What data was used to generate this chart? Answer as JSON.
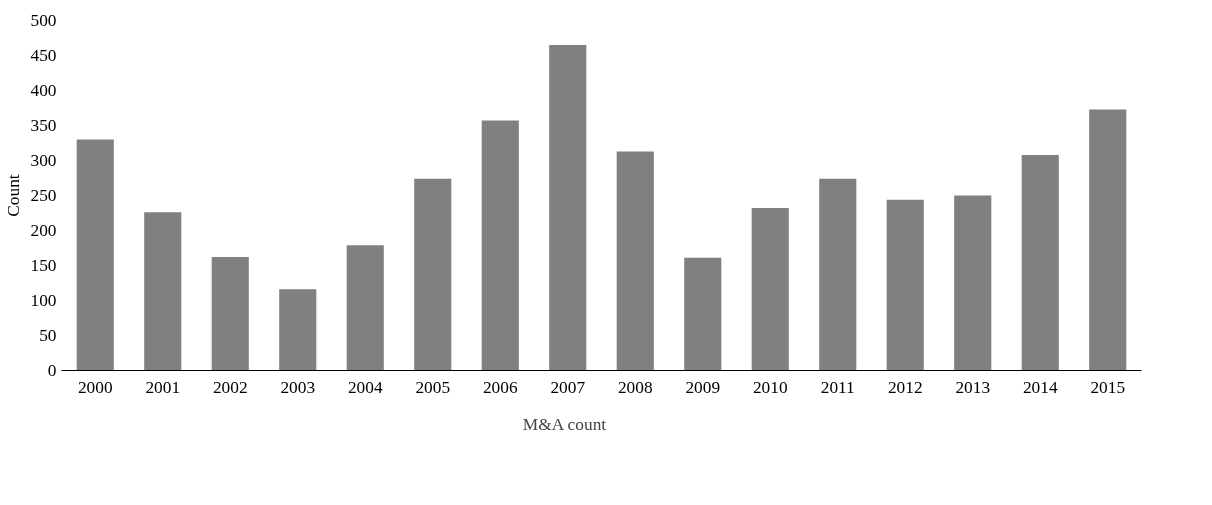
{
  "chart_data": {
    "type": "bar",
    "ylabel": "Count",
    "categories": [
      "2000",
      "2001",
      "2002",
      "2003",
      "2004",
      "2005",
      "2006",
      "2007",
      "2008",
      "2009",
      "2010",
      "2011",
      "2012",
      "2013",
      "2014",
      "2015"
    ],
    "series": [
      {
        "name": "M&A count",
        "color": "#808080",
        "values": [
          330,
          226,
          162,
          116,
          179,
          274,
          357,
          465,
          313,
          161,
          232,
          274,
          244,
          250,
          308,
          373
        ]
      }
    ],
    "ylim": [
      0,
      500
    ],
    "yticks": [
      0,
      50,
      100,
      150,
      200,
      250,
      300,
      350,
      400,
      450,
      500
    ],
    "grid": false,
    "legend": "bottom"
  }
}
